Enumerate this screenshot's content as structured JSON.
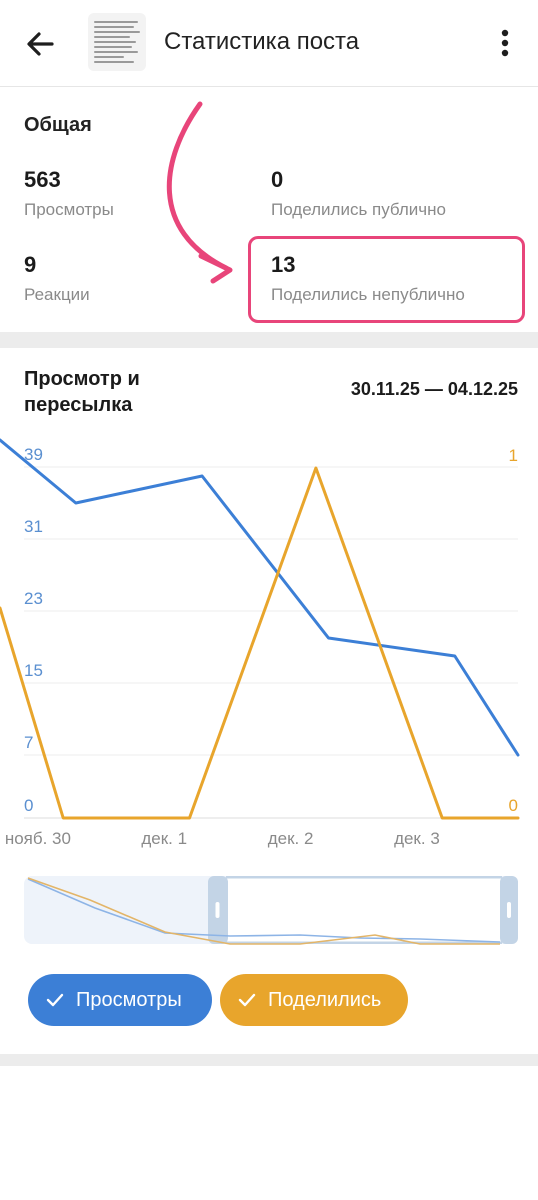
{
  "header": {
    "title": "Статистика поста",
    "back_icon": "arrow-left-icon",
    "menu_icon": "more-vertical-icon"
  },
  "overview": {
    "heading": "Общая",
    "stats": [
      {
        "value": "563",
        "label": "Просмотры"
      },
      {
        "value": "0",
        "label": "Поделились публично"
      },
      {
        "value": "9",
        "label": "Реакции"
      },
      {
        "value": "13",
        "label": "Поделились непублично"
      }
    ],
    "highlight_color": "#e8457a"
  },
  "chart_section": {
    "title": "Просмотр и пересылка",
    "date_range": "30.11.25 — 04.12.25"
  },
  "chart_data": {
    "type": "line",
    "x_ticks": [
      "нояб. 30",
      "дек. 1",
      "дек. 2",
      "дек. 3"
    ],
    "y_left_ticks": [
      "39",
      "31",
      "23",
      "15",
      "7",
      "0"
    ],
    "y_right_ticks": [
      "1",
      "0"
    ],
    "ylim_left": [
      0,
      42
    ],
    "ylim_right": [
      0,
      1.08
    ],
    "xlim": [
      -0.3,
      3.8
    ],
    "grid": true,
    "series": [
      {
        "name": "Просмотры",
        "color": "#3c7fd6",
        "axis": "left",
        "x": [
          -0.3,
          0.3,
          1.3,
          2.3,
          3.3,
          3.8
        ],
        "y": [
          42,
          35,
          38,
          20,
          18,
          7
        ]
      },
      {
        "name": "Поделились",
        "color": "#e8a52c",
        "axis": "right",
        "x": [
          -0.3,
          0.2,
          1.2,
          2.2,
          3.2,
          3.8
        ],
        "y": [
          0.6,
          0,
          0,
          1,
          0,
          0
        ]
      }
    ]
  },
  "toggles": [
    {
      "label": "Просмотры",
      "color": "#3c7fd6"
    },
    {
      "label": "Поделились",
      "color": "#e8a52c"
    }
  ]
}
